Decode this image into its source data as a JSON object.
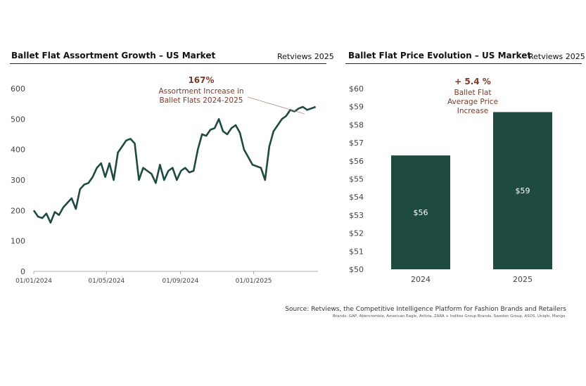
{
  "left_panel": {
    "title": "Ballet Flat Assortment Growth – US Market",
    "source": "Retviews 2025"
  },
  "right_panel": {
    "title": "Ballet Flat Price Evolution – US Market",
    "source": "Retviews 2025"
  },
  "annotations": {
    "left_value": "167%",
    "left_text_1": "Assortment Increase in",
    "left_text_2": "Ballet Flats 2024-2025",
    "right_value": "+ 5.4 %",
    "right_text_1": "Ballet Flat",
    "right_text_2": "Average Price",
    "right_text_3": "Increase"
  },
  "footer": {
    "source": "Source: Retviews, the Competitive Intelligence Platform for Fashion Brands and Retailers",
    "brands": "Brands: GAP, Abercrombie, American Eagle, Aritzia, ZARA + Inditex Group Brands, Sweden Group, ASOS, Uniqlo, Mango."
  },
  "colors": {
    "accent": "#1f4a42",
    "annotation": "#7b3a2a"
  },
  "chart_data": [
    {
      "type": "line",
      "title": "Ballet Flat Assortment Growth – US Market",
      "xlabel": "",
      "ylabel": "",
      "ylim": [
        0,
        600
      ],
      "yticks": [
        0,
        100,
        200,
        300,
        400,
        500,
        600
      ],
      "xticks": [
        "01/01/2024",
        "01/05/2024",
        "01/09/2024",
        "01/01/2025"
      ],
      "grid": false,
      "series": [
        {
          "x": [
            "2024-01-01",
            "2024-01-08",
            "2024-01-15",
            "2024-01-22",
            "2024-01-29",
            "2024-02-05",
            "2024-02-12",
            "2024-02-19",
            "2024-02-26",
            "2024-03-04",
            "2024-03-11",
            "2024-03-18",
            "2024-03-25",
            "2024-04-01",
            "2024-04-08",
            "2024-04-15",
            "2024-04-22",
            "2024-04-29",
            "2024-05-06",
            "2024-05-13",
            "2024-05-20",
            "2024-05-27",
            "2024-06-03",
            "2024-06-10",
            "2024-06-17",
            "2024-06-24",
            "2024-07-01",
            "2024-07-08",
            "2024-07-15",
            "2024-07-22",
            "2024-07-29",
            "2024-08-05",
            "2024-08-12",
            "2024-08-19",
            "2024-08-26",
            "2024-09-02",
            "2024-09-09",
            "2024-09-16",
            "2024-09-23",
            "2024-09-30",
            "2024-10-07",
            "2024-10-14",
            "2024-10-21",
            "2024-10-28",
            "2024-11-04",
            "2024-11-11",
            "2024-11-18",
            "2024-11-25",
            "2024-12-02",
            "2024-12-09",
            "2024-12-16",
            "2024-12-23",
            "2024-12-30",
            "2025-01-06",
            "2025-01-13",
            "2025-01-20",
            "2025-01-27",
            "2025-02-03",
            "2025-02-10",
            "2025-02-17",
            "2025-02-24",
            "2025-03-03",
            "2025-03-10",
            "2025-03-17",
            "2025-03-24",
            "2025-03-31",
            "2025-04-07",
            "2025-04-14"
          ],
          "values": [
            200,
            180,
            175,
            190,
            160,
            195,
            185,
            210,
            225,
            240,
            205,
            270,
            285,
            290,
            310,
            340,
            355,
            310,
            355,
            300,
            390,
            410,
            430,
            435,
            420,
            300,
            340,
            330,
            320,
            290,
            350,
            300,
            330,
            340,
            300,
            330,
            340,
            325,
            330,
            400,
            450,
            445,
            465,
            470,
            500,
            460,
            450,
            470,
            480,
            455,
            400,
            375,
            350,
            345,
            340,
            300,
            410,
            460,
            480,
            500,
            510,
            530,
            525,
            535,
            540,
            530,
            535,
            540
          ]
        }
      ],
      "annotation": {
        "value": "167%",
        "text": [
          "Assortment Increase in",
          "Ballet Flats 2024-2025"
        ]
      }
    },
    {
      "type": "bar",
      "title": "Ballet Flat Price Evolution – US Market",
      "categories": [
        "2024",
        "2025"
      ],
      "values": [
        56.3,
        58.7
      ],
      "value_labels": [
        "$56",
        "$59"
      ],
      "ylim": [
        50,
        60
      ],
      "yticks": [
        "$50",
        "$51",
        "$52",
        "$53",
        "$54",
        "$55",
        "$56",
        "$57",
        "$58",
        "$59",
        "$60"
      ],
      "grid": false,
      "annotation": {
        "value": "+ 5.4 %",
        "text": [
          "Ballet Flat",
          "Average Price",
          "Increase"
        ]
      }
    }
  ]
}
